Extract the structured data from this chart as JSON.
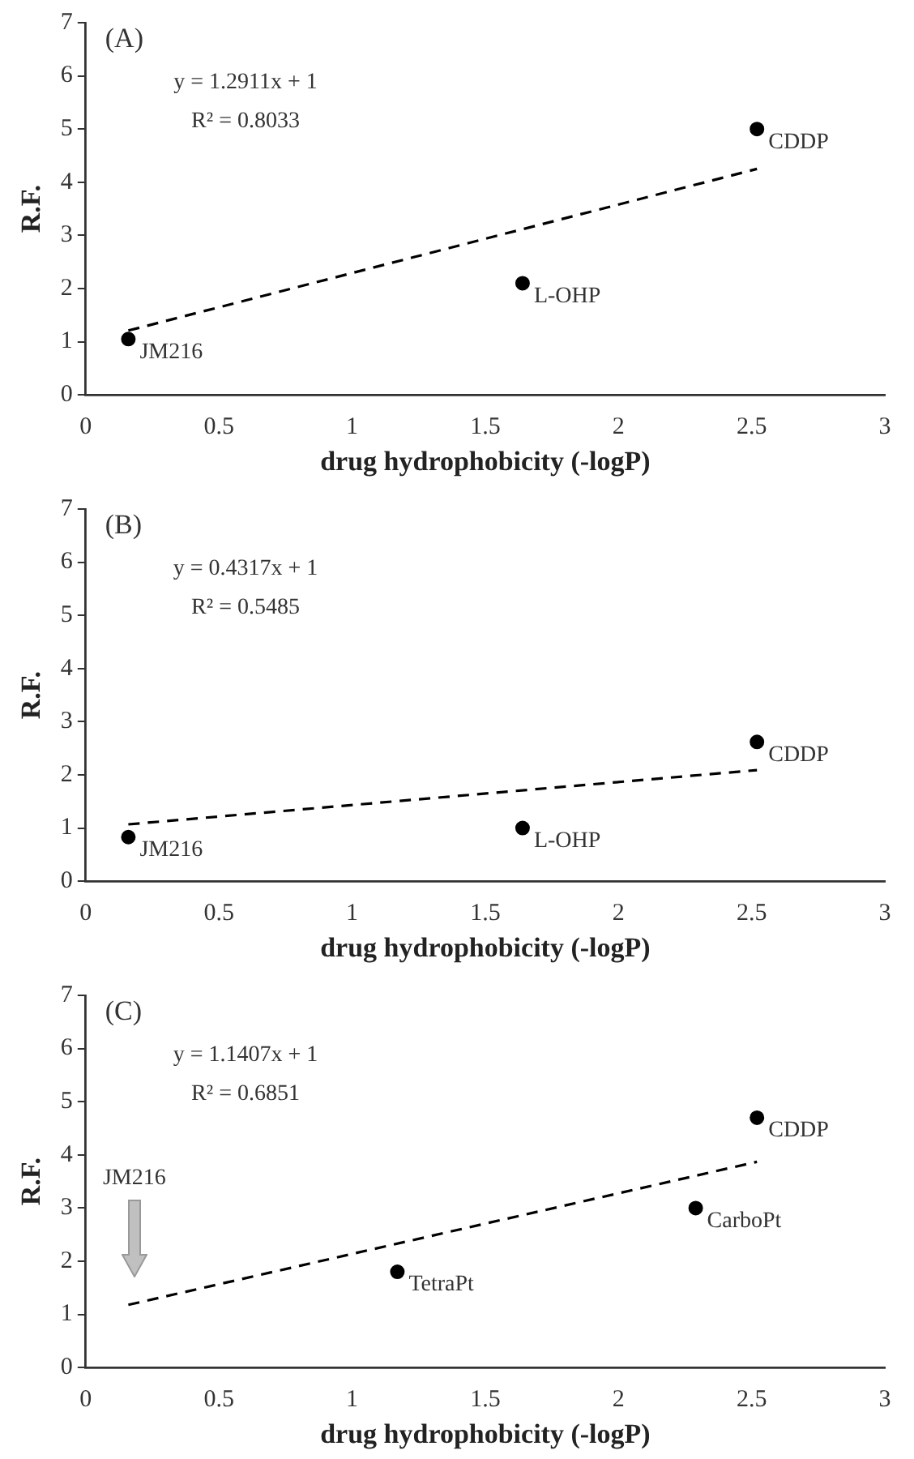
{
  "chart_data": [
    {
      "type": "scatter",
      "xlabel": "drug hydrophobicity (-logP)",
      "ylabel": "R.F.",
      "xlim": [
        0,
        3
      ],
      "xticks": [
        0,
        0.5,
        1,
        1.5,
        2,
        2.5,
        3
      ],
      "ylim": [
        0,
        7
      ],
      "yticks": [
        0,
        1,
        2,
        3,
        4,
        5,
        6,
        7
      ],
      "grid": false,
      "legend": false,
      "marker": "circle",
      "series": [
        {
          "type": "scatter",
          "color": "#000000",
          "x": [
            0.16,
            1.64,
            2.52
          ],
          "values": [
            1.05,
            2.1,
            5.0
          ]
        },
        {
          "type": "line",
          "color": "#000000",
          "line_style": "dashed",
          "marker": "none",
          "x": [
            0.16,
            2.52
          ],
          "values": [
            1.21,
            4.25
          ]
        }
      ],
      "annotations": [
        "(A)",
        "y = 1.2911x + 1",
        "R² = 0.8033",
        {
          "text": "JM216",
          "x": 0.16,
          "y": 1.05
        },
        {
          "text": "L-OHP",
          "x": 1.64,
          "y": 2.1
        },
        {
          "text": "CDDP",
          "x": 2.52,
          "y": 5.0
        }
      ]
    },
    {
      "type": "scatter",
      "xlabel": "drug hydrophobicity (-logP)",
      "ylabel": "R.F.",
      "xlim": [
        0,
        3
      ],
      "xticks": [
        0,
        0.5,
        1,
        1.5,
        2,
        2.5,
        3
      ],
      "ylim": [
        0,
        7
      ],
      "yticks": [
        0,
        1,
        2,
        3,
        4,
        5,
        6,
        7
      ],
      "grid": false,
      "legend": false,
      "marker": "circle",
      "series": [
        {
          "type": "scatter",
          "color": "#000000",
          "x": [
            0.16,
            1.64,
            2.52
          ],
          "values": [
            0.83,
            1.0,
            2.62
          ]
        },
        {
          "type": "line",
          "color": "#000000",
          "line_style": "dashed",
          "marker": "none",
          "x": [
            0.16,
            2.52
          ],
          "values": [
            1.07,
            2.09
          ]
        }
      ],
      "annotations": [
        "(B)",
        "y = 0.4317x + 1",
        "R² = 0.5485",
        {
          "text": "JM216",
          "x": 0.16,
          "y": 0.83
        },
        {
          "text": "L-OHP",
          "x": 1.64,
          "y": 1.0
        },
        {
          "text": "CDDP",
          "x": 2.52,
          "y": 2.62
        }
      ]
    },
    {
      "type": "scatter",
      "xlabel": "drug hydrophobicity (-logP)",
      "ylabel": "R.F.",
      "xlim": [
        0,
        3
      ],
      "xticks": [
        0,
        0.5,
        1,
        1.5,
        2,
        2.5,
        3
      ],
      "ylim": [
        0,
        7
      ],
      "yticks": [
        0,
        1,
        2,
        3,
        4,
        5,
        6,
        7
      ],
      "grid": false,
      "legend": false,
      "marker": "circle",
      "series": [
        {
          "type": "scatter",
          "color": "#000000",
          "x": [
            1.17,
            2.29,
            2.52
          ],
          "values": [
            1.8,
            3.0,
            4.7
          ]
        },
        {
          "type": "line",
          "color": "#000000",
          "line_style": "dashed",
          "marker": "none",
          "x": [
            0.16,
            2.52
          ],
          "values": [
            1.18,
            3.87
          ]
        }
      ],
      "annotations": [
        "(C)",
        "y = 1.1407x + 1",
        "R² = 0.6851",
        "JM216",
        {
          "text": "TetraPt",
          "x": 1.17,
          "y": 1.8
        },
        {
          "text": "CarboPt",
          "x": 2.29,
          "y": 3.0
        },
        {
          "text": "CDDP",
          "x": 2.52,
          "y": 4.7
        }
      ]
    }
  ]
}
